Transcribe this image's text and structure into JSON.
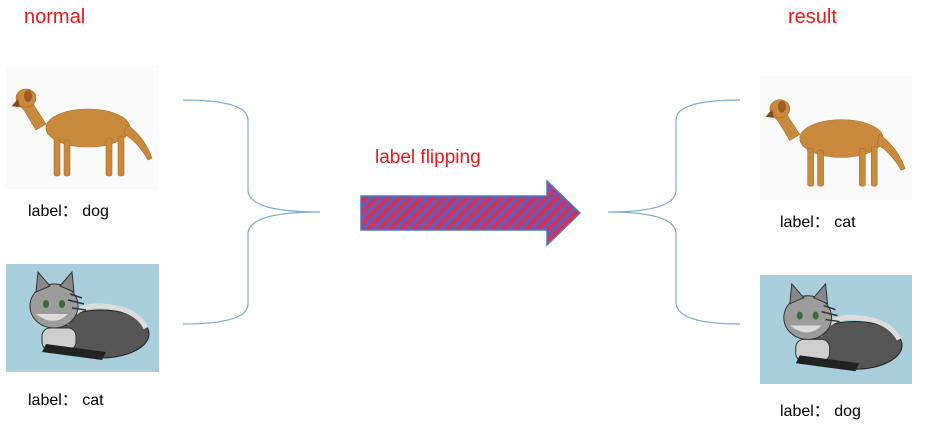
{
  "headings": {
    "left": "normal",
    "right": "result"
  },
  "arrow": {
    "label": "label flipping",
    "fill_color_a": "#d1325a",
    "fill_color_b": "#6f58b0",
    "outline_color": "#4a79c4"
  },
  "left_column": {
    "dog_caption": "label： dog",
    "cat_caption": "label： cat"
  },
  "right_column": {
    "dog_caption": "label： cat",
    "cat_caption": "label： dog"
  },
  "colors": {
    "heading": "#e8191c",
    "brace": "#7aaad8",
    "cat_background": "#a8cfdb"
  }
}
